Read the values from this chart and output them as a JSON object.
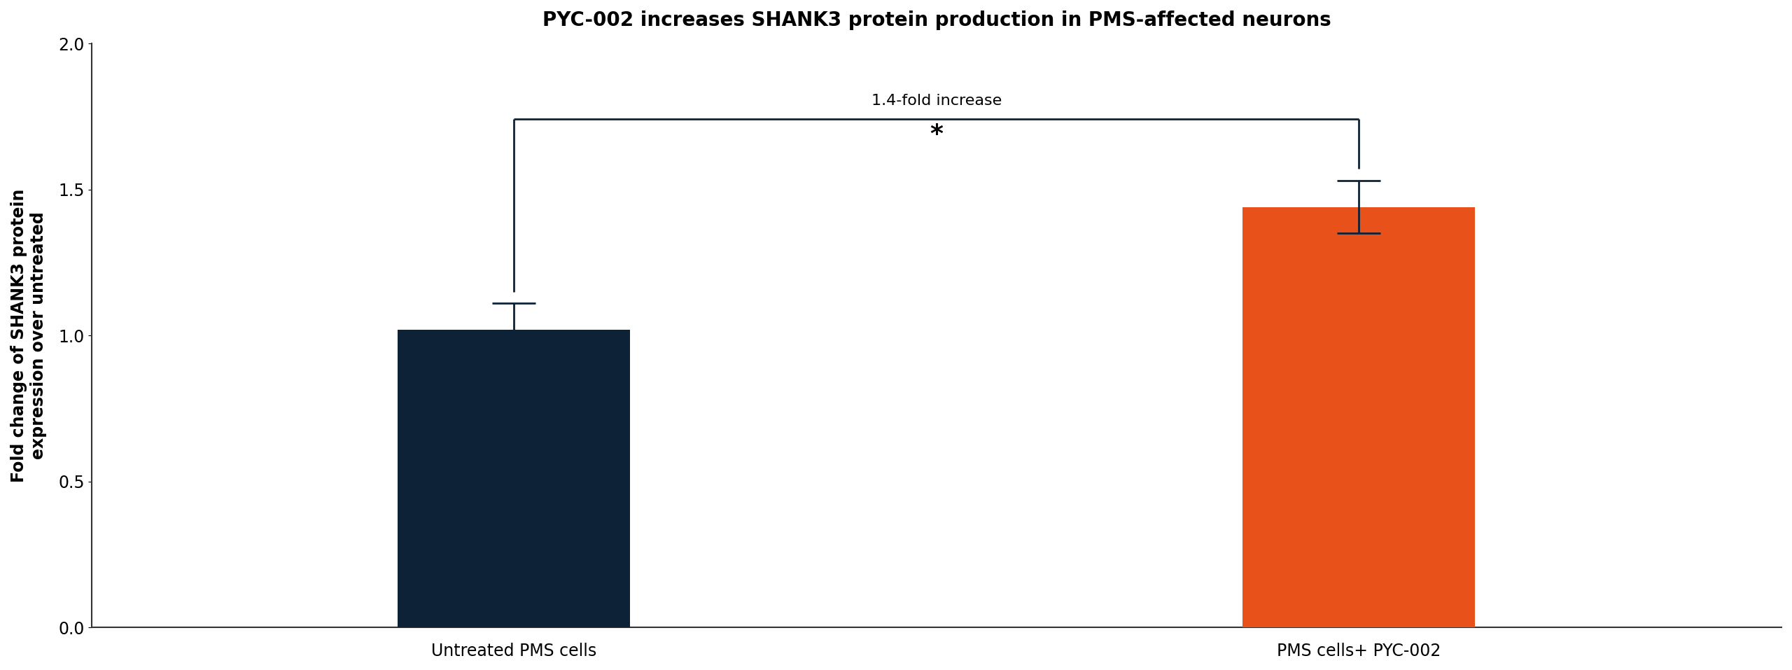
{
  "title": "PYC-002 increases SHANK3 protein production in PMS-affected neurons",
  "ylabel": "Fold change of SHANK3 protein\nexpression over untreated",
  "categories": [
    "Untreated PMS cells",
    "PMS cells+ PYC-002"
  ],
  "values": [
    1.02,
    1.44
  ],
  "errors": [
    0.09,
    0.09
  ],
  "bar_colors": [
    "#0d2137",
    "#e8511a"
  ],
  "ylim": [
    0,
    2.0
  ],
  "yticks": [
    0,
    0.5,
    1.0,
    1.5,
    2.0
  ],
  "significance_label": "1.4-fold increase",
  "significance_star": "*",
  "title_fontsize": 20,
  "ylabel_fontsize": 17,
  "tick_fontsize": 17,
  "xlabel_fontsize": 17,
  "annot_fontsize": 16,
  "star_fontsize": 26,
  "background_color": "#ffffff",
  "bar_width": 0.55,
  "bar_positions": [
    1,
    3
  ],
  "xlim": [
    0,
    4
  ],
  "bracket_y": 1.74,
  "bracket_color": "#0d2137",
  "bracket_lw": 2.0,
  "capsize_pts": 22,
  "error_lw": 2.0
}
